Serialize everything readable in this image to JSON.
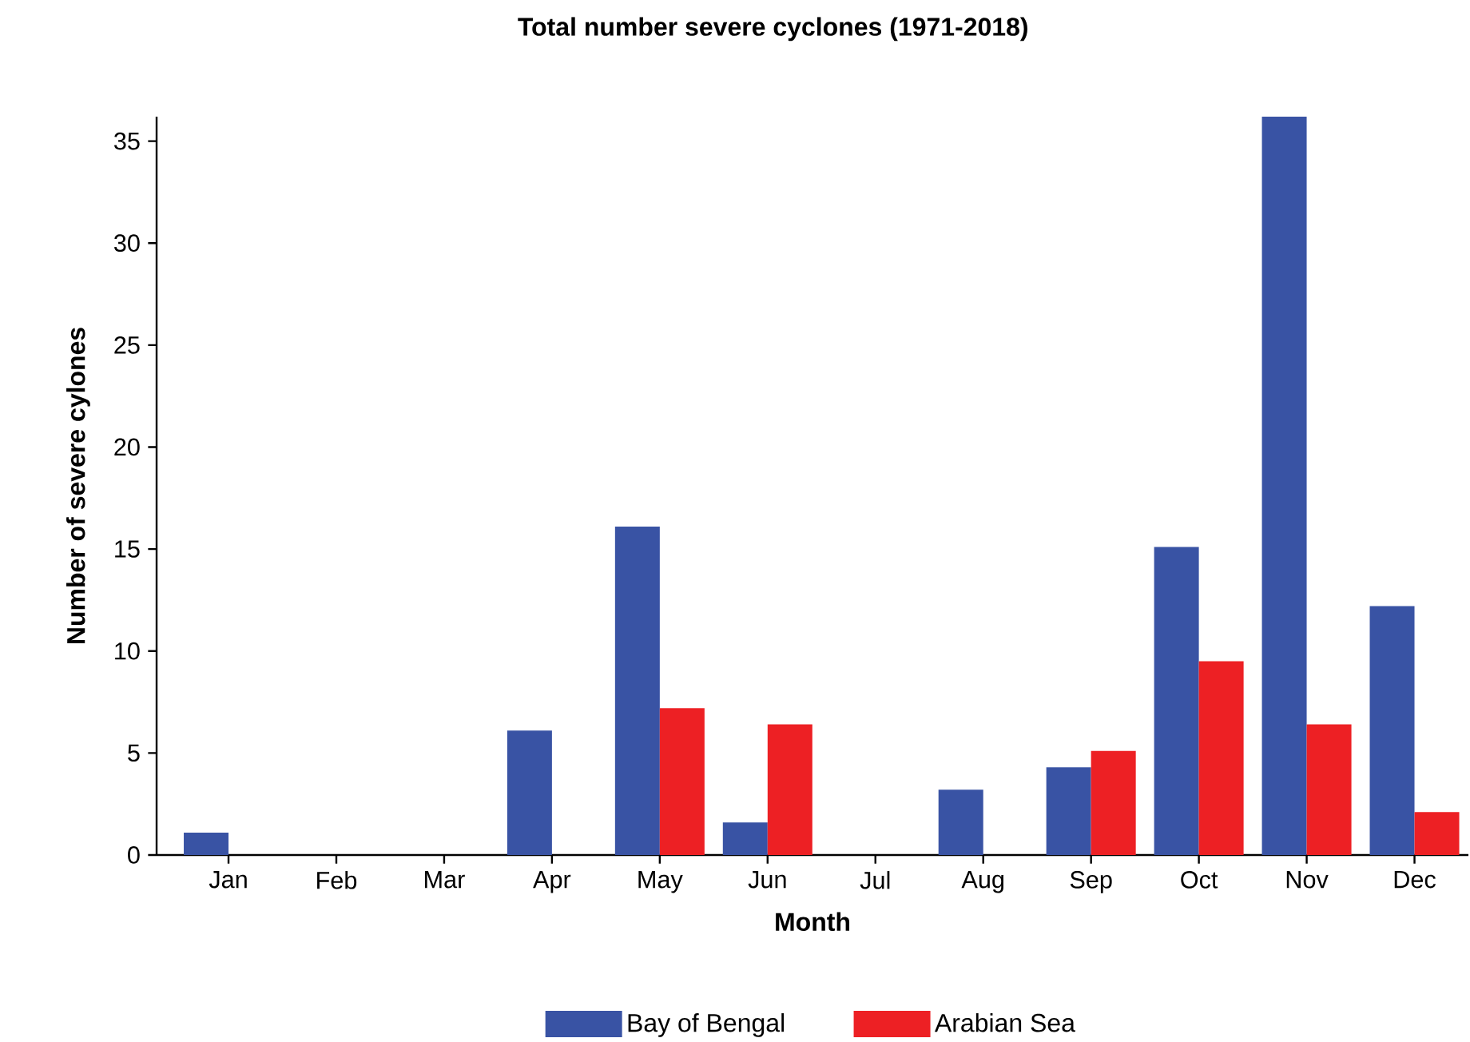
{
  "chart_data": {
    "type": "bar",
    "title": "Total number severe cyclones (1971-2018)",
    "xlabel": "Month",
    "ylabel": "Number of severe cylones",
    "categories": [
      "Jan",
      "Feb",
      "Mar",
      "Apr",
      "May",
      "Jun",
      "Jul",
      "Aug",
      "Sep",
      "Oct",
      "Nov",
      "Dec"
    ],
    "series": [
      {
        "name": "Bay of Bengal",
        "color": "#3953a4",
        "values": [
          1.1,
          0,
          0,
          6.1,
          16.1,
          1.6,
          0,
          3.2,
          4.3,
          15.1,
          36.2,
          12.2
        ]
      },
      {
        "name": "Arabian Sea",
        "color": "#ed2024",
        "values": [
          0,
          0,
          0,
          0,
          7.2,
          6.4,
          0,
          0,
          5.1,
          9.5,
          6.4,
          2.1
        ]
      }
    ],
    "ylim": [
      0,
      36.2
    ],
    "yticks": [
      0,
      5,
      10,
      15,
      20,
      25,
      30,
      35
    ],
    "grid": false,
    "legend": "bottom"
  }
}
